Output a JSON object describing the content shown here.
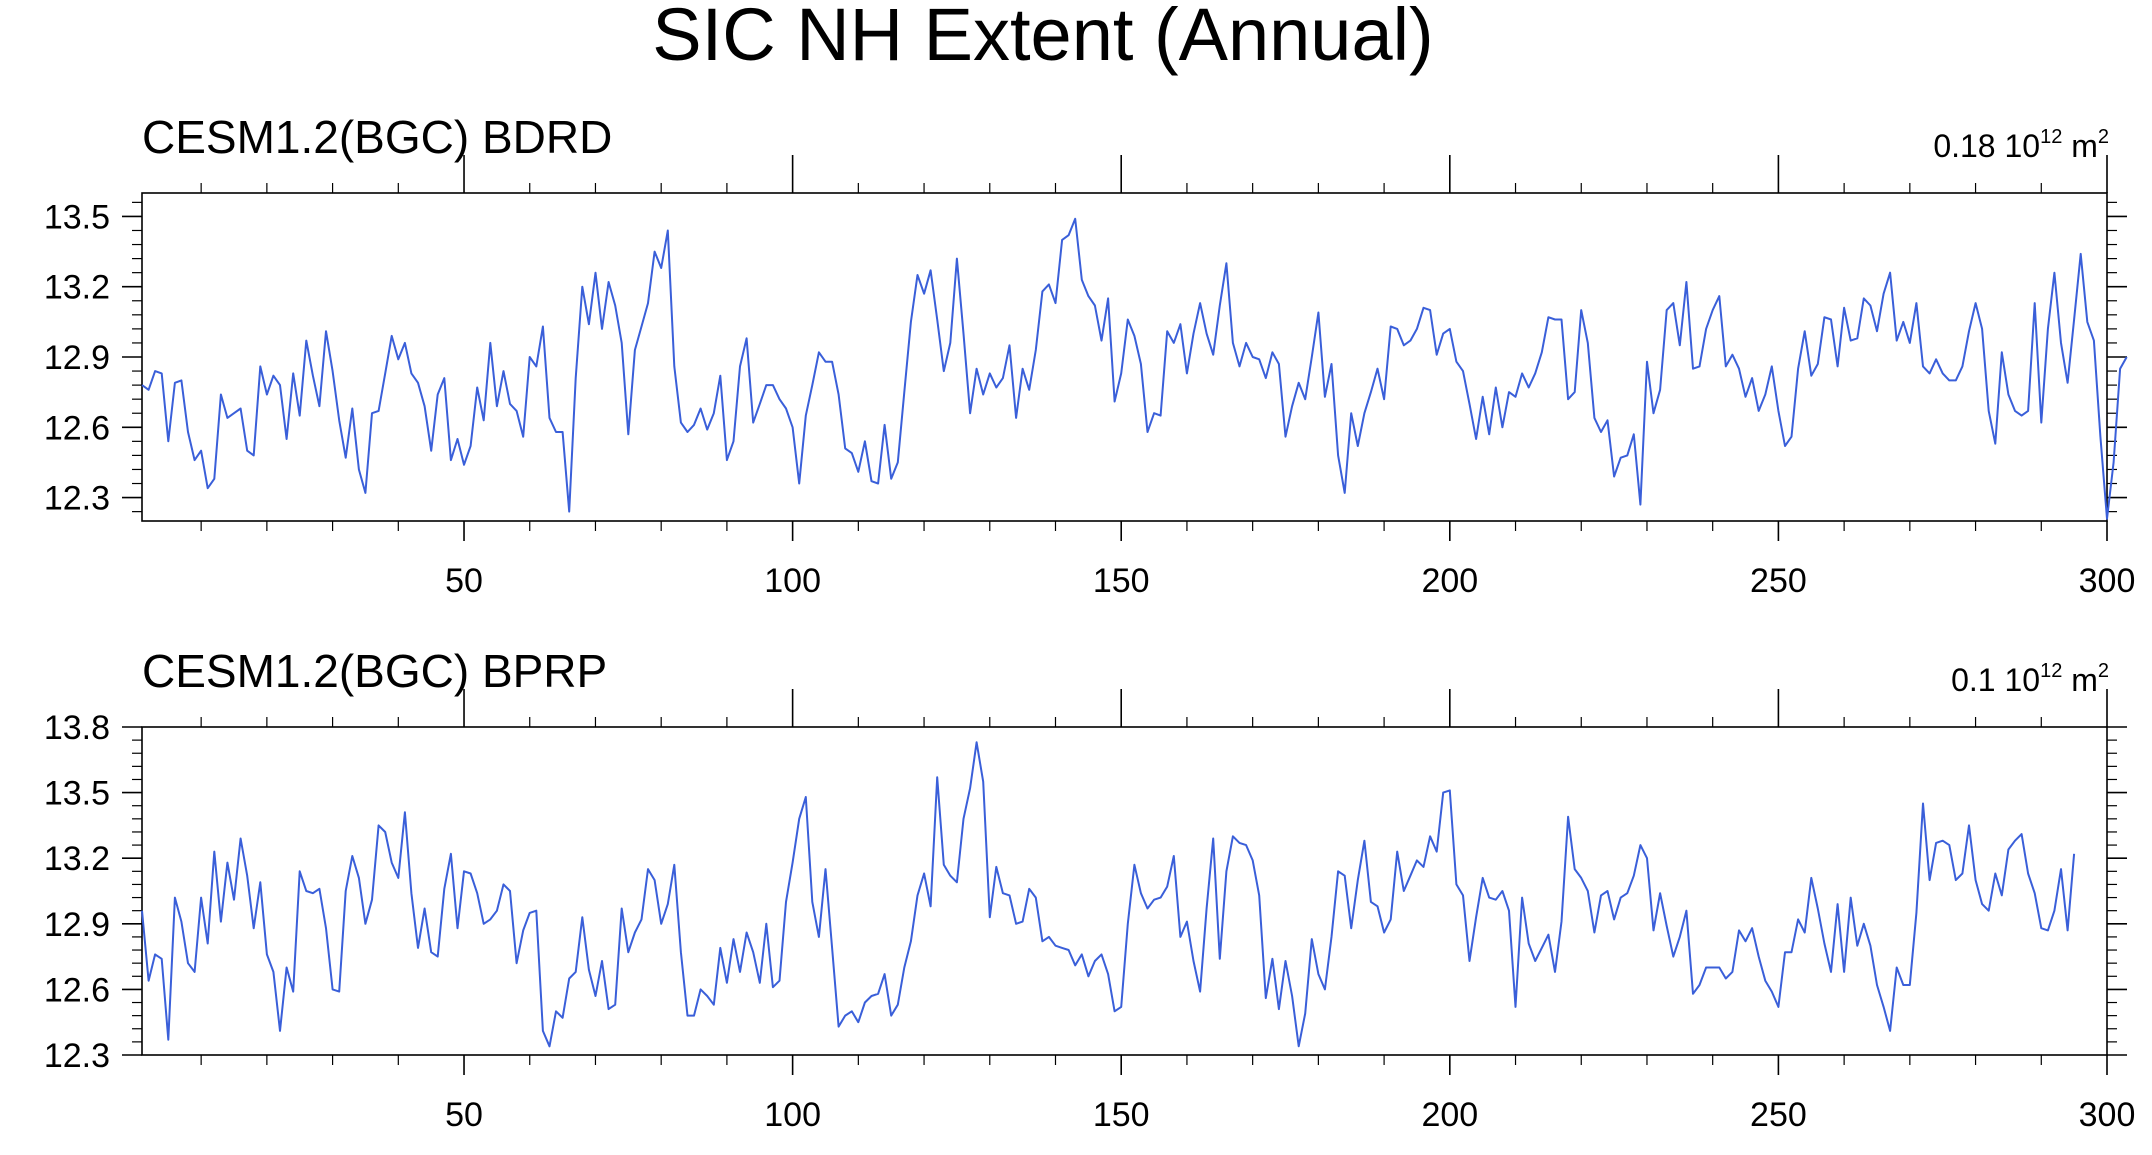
{
  "figure": {
    "title": "SIC NH Extent (Annual)"
  },
  "chart_data": [
    {
      "type": "line",
      "title": "CESM1.2(BGC) BDRD",
      "stat_value": "0.18",
      "stat_unit_base": "10",
      "stat_unit_exp": "12",
      "stat_unit_tail": "m",
      "stat_unit_tail_exp": "2",
      "xlabel": "",
      "ylabel": "",
      "xlim": [
        1,
        300
      ],
      "ylim": [
        12.2,
        13.6
      ],
      "x_ticks": [
        50,
        100,
        150,
        200,
        250,
        300
      ],
      "y_ticks": [
        12.3,
        12.6,
        12.9,
        13.2,
        13.5
      ],
      "y_tick_labels": [
        "12.3",
        "12.6",
        "12.9",
        "13.2",
        "13.5"
      ],
      "x_start": 1,
      "line_color": "#3a5fd9",
      "grid": false,
      "series": [
        {
          "values": [
            12.78,
            12.76,
            12.84,
            12.83,
            12.54,
            12.79,
            12.8,
            12.58,
            12.46,
            12.5,
            12.34,
            12.38,
            12.74,
            12.64,
            12.66,
            12.68,
            12.5,
            12.48,
            12.86,
            12.74,
            12.82,
            12.78,
            12.55,
            12.83,
            12.65,
            12.97,
            12.82,
            12.69,
            13.01,
            12.84,
            12.63,
            12.47,
            12.68,
            12.42,
            12.32,
            12.66,
            12.67,
            12.83,
            12.99,
            12.89,
            12.96,
            12.83,
            12.79,
            12.69,
            12.5,
            12.74,
            12.81,
            12.46,
            12.55,
            12.44,
            12.52,
            12.77,
            12.63,
            12.96,
            12.69,
            12.84,
            12.7,
            12.67,
            12.56,
            12.9,
            12.86,
            13.03,
            12.64,
            12.58,
            12.58,
            12.24,
            12.81,
            13.2,
            13.04,
            13.26,
            13.02,
            13.22,
            13.12,
            12.96,
            12.57,
            12.93,
            13.03,
            13.13,
            13.35,
            13.28,
            13.44,
            12.86,
            12.62,
            12.58,
            12.61,
            12.68,
            12.59,
            12.66,
            12.82,
            12.46,
            12.54,
            12.86,
            12.98,
            12.62,
            12.7,
            12.78,
            12.78,
            12.72,
            12.68,
            12.6,
            12.36,
            12.65,
            12.78,
            12.92,
            12.88,
            12.88,
            12.74,
            12.51,
            12.49,
            12.41,
            12.54,
            12.37,
            12.36,
            12.61,
            12.38,
            12.45,
            12.75,
            13.05,
            13.25,
            13.17,
            13.27,
            13.06,
            12.84,
            12.96,
            13.32,
            13.0,
            12.66,
            12.85,
            12.74,
            12.83,
            12.77,
            12.81,
            12.95,
            12.64,
            12.85,
            12.76,
            12.93,
            13.18,
            13.21,
            13.13,
            13.4,
            13.42,
            13.49,
            13.23,
            13.16,
            13.12,
            12.97,
            13.15,
            12.71,
            12.83,
            13.06,
            12.99,
            12.87,
            12.58,
            12.66,
            12.65,
            13.01,
            12.96,
            13.04,
            12.83,
            13.0,
            13.13,
            13.0,
            12.91,
            13.12,
            13.3,
            12.96,
            12.86,
            12.96,
            12.9,
            12.89,
            12.81,
            12.92,
            12.87,
            12.56,
            12.69,
            12.79,
            12.72,
            12.9,
            13.09,
            12.73,
            12.87,
            12.48,
            12.32,
            12.66,
            12.52,
            12.66,
            12.75,
            12.85,
            12.72,
            13.03,
            13.02,
            12.95,
            12.97,
            13.02,
            13.11,
            13.1,
            12.91,
            13.0,
            13.02,
            12.88,
            12.84,
            12.7,
            12.55,
            12.73,
            12.57,
            12.77,
            12.6,
            12.75,
            12.73,
            12.83,
            12.77,
            12.83,
            12.92,
            13.07,
            13.06,
            13.06,
            12.72,
            12.75,
            13.1,
            12.96,
            12.64,
            12.58,
            12.63,
            12.39,
            12.47,
            12.48,
            12.57,
            12.27,
            12.88,
            12.66,
            12.76,
            13.1,
            13.13,
            12.95,
            13.22,
            12.85,
            12.86,
            13.02,
            13.1,
            13.16,
            12.86,
            12.91,
            12.85,
            12.73,
            12.81,
            12.67,
            12.74,
            12.86,
            12.67,
            12.52,
            12.56,
            12.85,
            13.01,
            12.82,
            12.87,
            13.07,
            13.06,
            12.86,
            13.11,
            12.97,
            12.98,
            13.15,
            13.12,
            13.01,
            13.17,
            13.26,
            12.97,
            13.05,
            12.96,
            13.13,
            12.86,
            12.83,
            12.89,
            12.83,
            12.8,
            12.8,
            12.86,
            13.01,
            13.13,
            13.02,
            12.67,
            12.53,
            12.92,
            12.74,
            12.67,
            12.65,
            12.67,
            13.13,
            12.62,
            13.02,
            13.26,
            12.96,
            12.79,
            13.06,
            13.34,
            13.05,
            12.97,
            12.56,
            12.21,
            12.45,
            12.85,
            12.9
          ]
        }
      ]
    },
    {
      "type": "line",
      "title": "CESM1.2(BGC) BPRP",
      "stat_value": "0.1",
      "stat_unit_base": "10",
      "stat_unit_exp": "12",
      "stat_unit_tail": "m",
      "stat_unit_tail_exp": "2",
      "xlabel": "",
      "ylabel": "",
      "xlim": [
        1,
        300
      ],
      "ylim": [
        12.3,
        13.8
      ],
      "x_ticks": [
        50,
        100,
        150,
        200,
        250,
        300
      ],
      "y_ticks": [
        12.3,
        12.6,
        12.9,
        13.2,
        13.5,
        13.8
      ],
      "y_tick_labels": [
        "12.3",
        "12.6",
        "12.9",
        "13.2",
        "13.5",
        "13.8"
      ],
      "x_start": 1,
      "line_color": "#3a5fd9",
      "grid": false,
      "series": [
        {
          "values": [
            12.96,
            12.64,
            12.76,
            12.74,
            12.37,
            13.02,
            12.91,
            12.72,
            12.68,
            13.02,
            12.81,
            13.23,
            12.91,
            13.18,
            13.01,
            13.29,
            13.12,
            12.88,
            13.09,
            12.76,
            12.68,
            12.41,
            12.7,
            12.59,
            13.14,
            13.05,
            13.04,
            13.06,
            12.88,
            12.6,
            12.59,
            13.05,
            13.21,
            13.11,
            12.9,
            13.01,
            13.35,
            13.32,
            13.18,
            13.11,
            13.41,
            13.04,
            12.79,
            12.97,
            12.77,
            12.75,
            13.06,
            13.22,
            12.88,
            13.14,
            13.13,
            13.04,
            12.9,
            12.92,
            12.96,
            13.08,
            13.05,
            12.72,
            12.87,
            12.95,
            12.96,
            12.41,
            12.34,
            12.5,
            12.47,
            12.65,
            12.68,
            12.93,
            12.69,
            12.57,
            12.73,
            12.51,
            12.53,
            12.97,
            12.77,
            12.86,
            12.92,
            13.15,
            13.1,
            12.9,
            12.99,
            13.17,
            12.77,
            12.48,
            12.48,
            12.6,
            12.57,
            12.53,
            12.79,
            12.63,
            12.83,
            12.68,
            12.86,
            12.77,
            12.63,
            12.9,
            12.61,
            12.64,
            13.0,
            13.18,
            13.38,
            13.48,
            13.0,
            12.84,
            13.15,
            12.79,
            12.43,
            12.48,
            12.5,
            12.45,
            12.54,
            12.57,
            12.58,
            12.67,
            12.48,
            12.53,
            12.7,
            12.82,
            13.03,
            13.13,
            12.98,
            13.57,
            13.17,
            13.12,
            13.09,
            13.38,
            13.52,
            13.73,
            13.55,
            12.93,
            13.16,
            13.04,
            13.03,
            12.9,
            12.91,
            13.06,
            13.02,
            12.82,
            12.84,
            12.8,
            12.79,
            12.78,
            12.71,
            12.76,
            12.66,
            12.73,
            12.76,
            12.67,
            12.5,
            12.52,
            12.9,
            13.17,
            13.04,
            12.97,
            13.01,
            13.02,
            13.07,
            13.21,
            12.84,
            12.91,
            12.73,
            12.59,
            12.97,
            13.29,
            12.74,
            13.14,
            13.3,
            13.27,
            13.26,
            13.19,
            13.03,
            12.56,
            12.74,
            12.51,
            12.73,
            12.57,
            12.34,
            12.49,
            12.83,
            12.67,
            12.6,
            12.84,
            13.14,
            13.12,
            12.88,
            13.1,
            13.28,
            13.0,
            12.98,
            12.86,
            12.92,
            13.23,
            13.05,
            13.12,
            13.19,
            13.16,
            13.3,
            13.23,
            13.5,
            13.51,
            13.08,
            13.03,
            12.73,
            12.93,
            13.11,
            13.02,
            13.01,
            13.05,
            12.96,
            12.52,
            13.02,
            12.81,
            12.73,
            12.79,
            12.85,
            12.68,
            12.91,
            13.39,
            13.15,
            13.11,
            13.05,
            12.86,
            13.03,
            13.05,
            12.92,
            13.02,
            13.04,
            13.12,
            13.26,
            13.2,
            12.87,
            13.04,
            12.89,
            12.75,
            12.84,
            12.96,
            12.58,
            12.62,
            12.7,
            12.7,
            12.7,
            12.65,
            12.68,
            12.87,
            12.82,
            12.88,
            12.75,
            12.64,
            12.59,
            12.52,
            12.77,
            12.77,
            12.92,
            12.86,
            13.11,
            12.97,
            12.81,
            12.68,
            12.99,
            12.68,
            13.02,
            12.8,
            12.9,
            12.8,
            12.62,
            12.52,
            12.41,
            12.7,
            12.62,
            12.62,
            12.95,
            13.45,
            13.1,
            13.27,
            13.28,
            13.26,
            13.1,
            13.13,
            13.35,
            13.1,
            12.99,
            12.96,
            13.13,
            13.03,
            13.24,
            13.28,
            13.31,
            13.13,
            13.04,
            12.88,
            12.87,
            12.96,
            13.15,
            12.87,
            13.22
          ]
        }
      ]
    }
  ]
}
